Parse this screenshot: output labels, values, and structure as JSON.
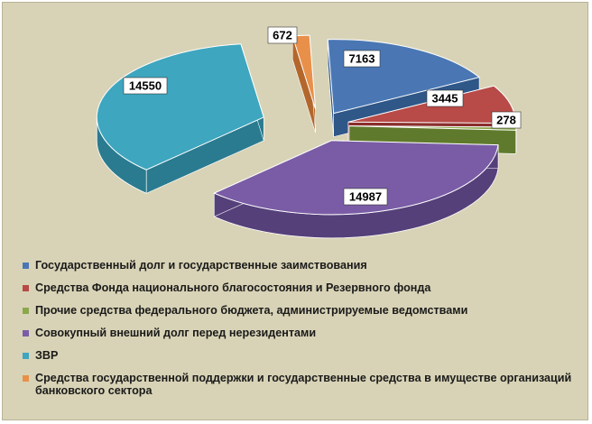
{
  "chart_data": {
    "type": "pie",
    "style": "3d-exploded",
    "legend_position": "bottom",
    "slices": [
      {
        "label": "Государственный долг и государственные заимствования",
        "value": 7163,
        "color": "#4a77b4",
        "side_color": "#2f5788"
      },
      {
        "label": "Средства Фонда национального благосостояния и Резервного фонда",
        "value": 3445,
        "color": "#b84a47",
        "side_color": "#8a2f2d"
      },
      {
        "label": "Прочие средства федерального бюджета, администрируемые ведомствами",
        "value": 278,
        "color": "#8aa84a",
        "side_color": "#5f7a2c"
      },
      {
        "label": "Совокупный внешний долг перед нерезидентами",
        "value": 14987,
        "color": "#7a5ca6",
        "side_color": "#55407a"
      },
      {
        "label": "ЗВР",
        "value": 14550,
        "color": "#3ea6bf",
        "side_color": "#2a7b8f"
      },
      {
        "label": "Средства государственной поддержки и государственные средства в имуществе организаций банковского сектора",
        "value": 672,
        "color": "#e8904a",
        "side_color": "#b3672c"
      }
    ]
  }
}
